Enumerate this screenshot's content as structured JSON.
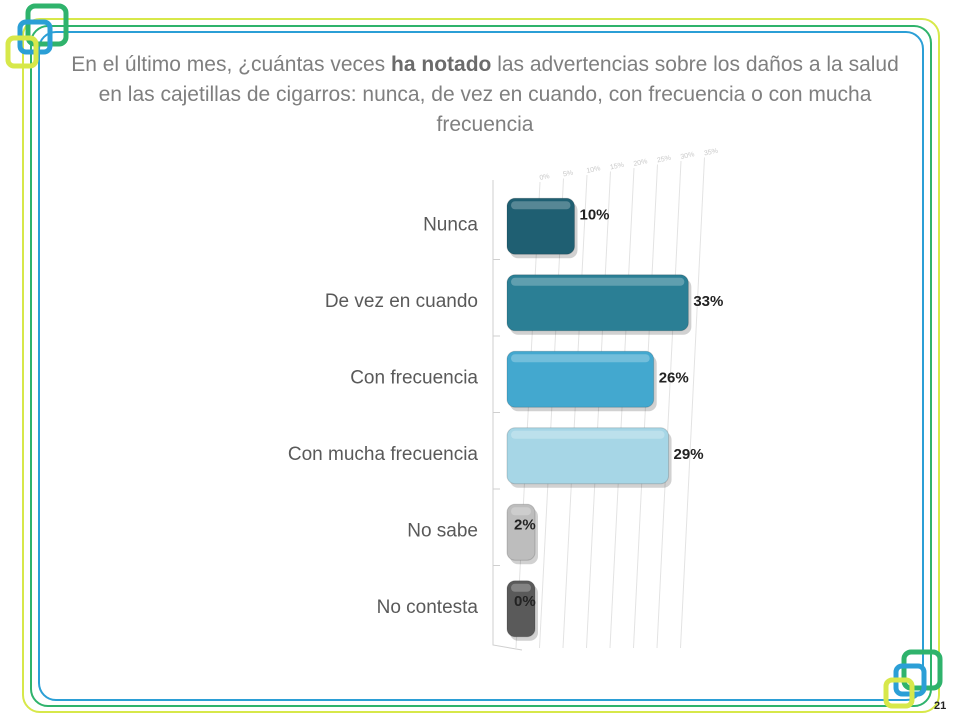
{
  "slide": {
    "title_part1": "En el último mes, ¿cuántas veces ",
    "title_bold": "ha notado",
    "title_part2": " las advertencias sobre los daños a la salud en las cajetillas de cigarros: nunca, de vez en cuando, con frecuencia o con mucha frecuencia",
    "page_number": "21"
  },
  "colors": {
    "frame_yellow": "#d7e84a",
    "frame_green": "#2fb36c",
    "frame_blue": "#2b9fd6"
  },
  "chart_data": {
    "type": "bar",
    "orientation": "horizontal",
    "categories": [
      "Nunca",
      "De vez en cuando",
      "Con frecuencia",
      "Con mucha frecuencia",
      "No sabe",
      "No contesta"
    ],
    "values": [
      10,
      33,
      26,
      29,
      2,
      0
    ],
    "value_labels": [
      "10%",
      "33%",
      "26%",
      "29%",
      "2%",
      "0%"
    ],
    "bar_colors": [
      "#1f5f72",
      "#2b7f95",
      "#43a8cf",
      "#a6d6e6",
      "#bdbdbd",
      "#5a5a5a"
    ],
    "x_ticks": [
      "0%",
      "5%",
      "10%",
      "15%",
      "20%",
      "25%",
      "30%",
      "35%"
    ],
    "xlim": [
      0,
      35
    ],
    "grid": true
  }
}
